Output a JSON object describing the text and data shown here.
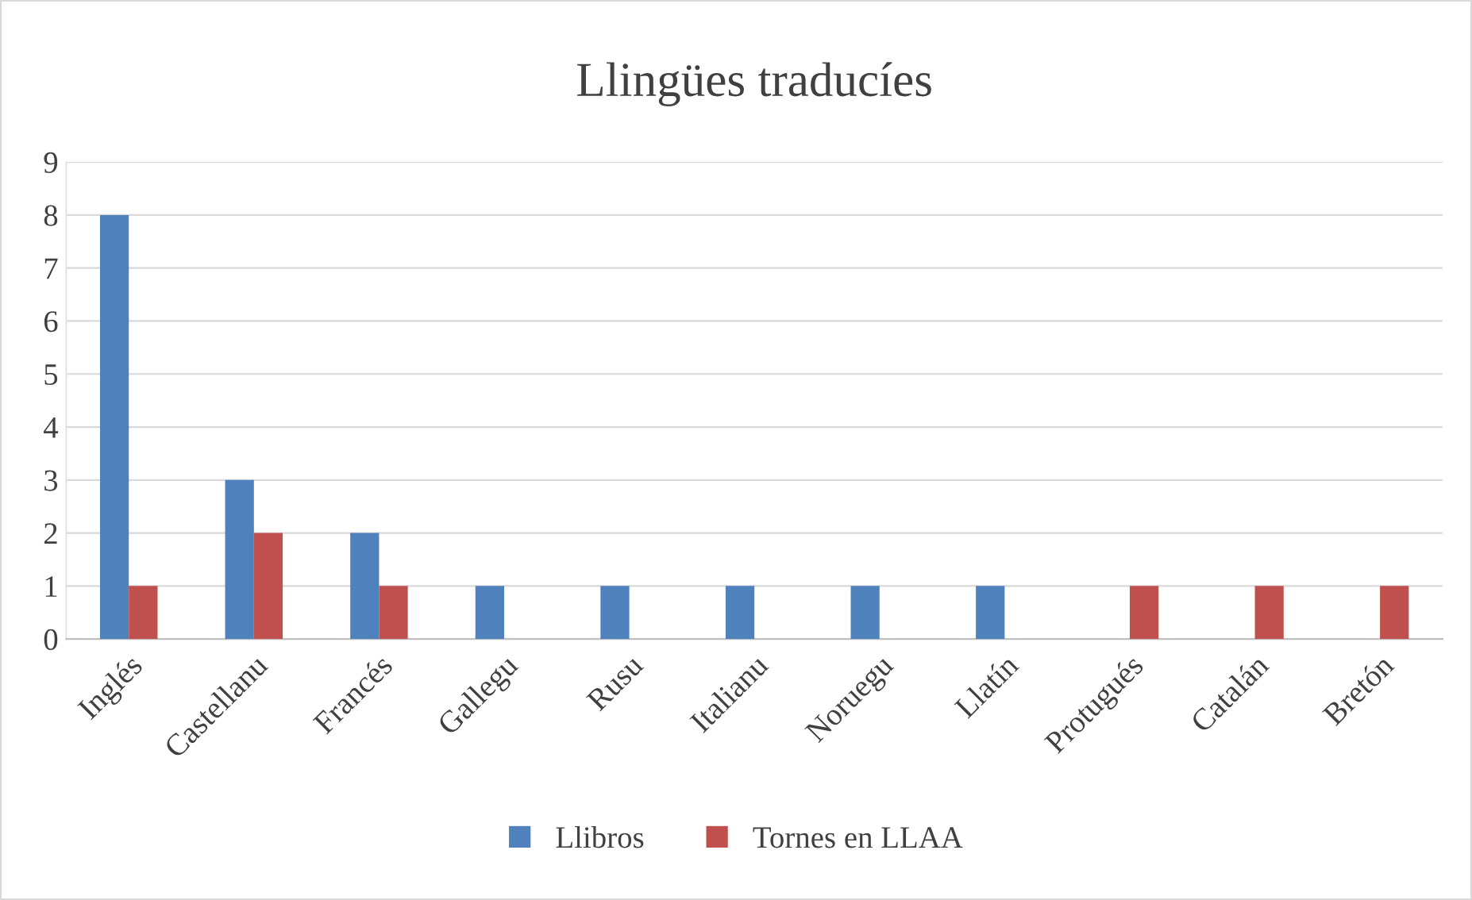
{
  "chart_data": {
    "type": "bar",
    "title": "Llingües traducíes",
    "categories": [
      "Inglés",
      "Castellanu",
      "Francés",
      "Gallegu",
      "Rusu",
      "Italianu",
      "Noruegu",
      "Llatín",
      "Protugués",
      "Catalán",
      "Bretón"
    ],
    "series": [
      {
        "name": "Llibros",
        "color": "#4f81bd",
        "values": [
          8,
          3,
          2,
          1,
          1,
          1,
          1,
          1,
          null,
          null,
          null
        ]
      },
      {
        "name": "Tornes en LLAA",
        "color": "#c0504d",
        "values": [
          1,
          2,
          1,
          null,
          null,
          null,
          null,
          null,
          1,
          1,
          1
        ]
      }
    ],
    "ylim": [
      0,
      9
    ],
    "yticks": [
      0,
      1,
      2,
      3,
      4,
      5,
      6,
      7,
      8,
      9
    ],
    "grid": "y",
    "legend": "bottom"
  }
}
